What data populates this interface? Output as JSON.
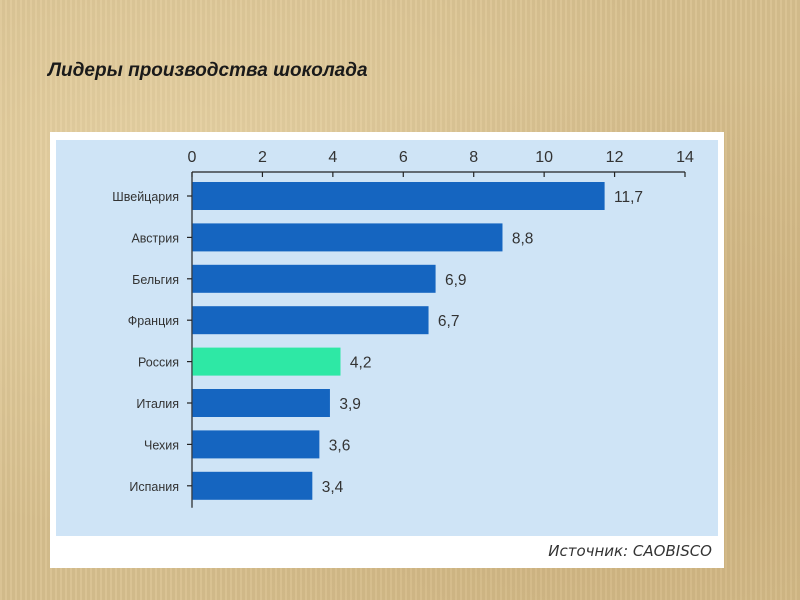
{
  "slide": {
    "title": "Лидеры производства  шоколада",
    "source": "Источник: CAOBISCO"
  },
  "colors": {
    "panel": "#cfe4f6",
    "bar": "#1565c0",
    "highlight": "#2ee8a5"
  },
  "chart_data": {
    "type": "bar",
    "orientation": "horizontal",
    "title": "",
    "xlabel": "",
    "ylabel": "",
    "categories": [
      "Швейцария",
      "Австрия",
      "Бельгия",
      "Франция",
      "Россия",
      "Италия",
      "Чехия",
      "Испания"
    ],
    "values": [
      11.7,
      8.8,
      6.9,
      6.7,
      4.2,
      3.9,
      3.6,
      3.4
    ],
    "value_labels": [
      "11,7",
      "8,8",
      "6,9",
      "6,7",
      "4,2",
      "3,9",
      "3,6",
      "3,4"
    ],
    "highlight_category": "Россия",
    "xlim": [
      0,
      14
    ],
    "x_ticks": [
      0,
      2,
      4,
      6,
      8,
      10,
      12,
      14
    ],
    "axis_position": "top",
    "grid": false,
    "legend": "none"
  }
}
